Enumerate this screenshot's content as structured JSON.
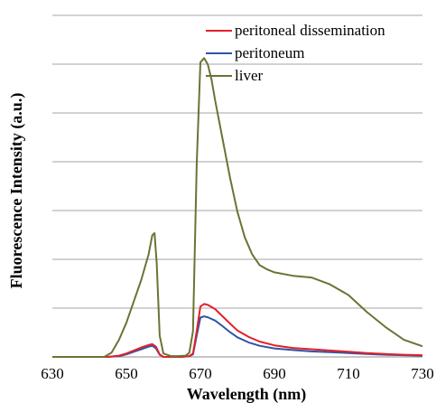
{
  "chart_data": {
    "type": "line",
    "title": "",
    "xlabel": "Wavelength (nm)",
    "ylabel": "Fluorescence Intensity (a.u.)",
    "xlim": [
      630,
      730
    ],
    "x_ticks": [
      "630",
      "650",
      "670",
      "690",
      "710",
      "730"
    ],
    "y_gridlines": 7,
    "grid": true,
    "legend_position": "top-right",
    "series": [
      {
        "name": "peritoneal dissemination",
        "color": "#e3202b",
        "points": [
          [
            630,
            0.0
          ],
          [
            645,
            0.0
          ],
          [
            648,
            0.003
          ],
          [
            650,
            0.008
          ],
          [
            652,
            0.015
          ],
          [
            654,
            0.022
          ],
          [
            656,
            0.028
          ],
          [
            657,
            0.03
          ],
          [
            658,
            0.024
          ],
          [
            659,
            0.006
          ],
          [
            660,
            0.0
          ],
          [
            662,
            0.0
          ],
          [
            665,
            0.0
          ],
          [
            667,
            0.002
          ],
          [
            668,
            0.008
          ],
          [
            669,
            0.06
          ],
          [
            670,
            0.118
          ],
          [
            671,
            0.124
          ],
          [
            672,
            0.122
          ],
          [
            674,
            0.112
          ],
          [
            676,
            0.095
          ],
          [
            678,
            0.078
          ],
          [
            680,
            0.062
          ],
          [
            683,
            0.047
          ],
          [
            686,
            0.036
          ],
          [
            690,
            0.027
          ],
          [
            695,
            0.021
          ],
          [
            700,
            0.018
          ],
          [
            705,
            0.015
          ],
          [
            710,
            0.012
          ],
          [
            715,
            0.009
          ],
          [
            720,
            0.007
          ],
          [
            725,
            0.005
          ],
          [
            730,
            0.004
          ]
        ]
      },
      {
        "name": "peritoneum",
        "color": "#2e55a6",
        "points": [
          [
            630,
            0.0
          ],
          [
            645,
            0.0
          ],
          [
            648,
            0.002
          ],
          [
            650,
            0.006
          ],
          [
            652,
            0.012
          ],
          [
            654,
            0.018
          ],
          [
            656,
            0.024
          ],
          [
            657,
            0.026
          ],
          [
            658,
            0.02
          ],
          [
            659,
            0.005
          ],
          [
            660,
            0.0
          ],
          [
            662,
            0.0
          ],
          [
            665,
            0.0
          ],
          [
            667,
            0.002
          ],
          [
            668,
            0.006
          ],
          [
            669,
            0.05
          ],
          [
            670,
            0.092
          ],
          [
            671,
            0.095
          ],
          [
            672,
            0.093
          ],
          [
            674,
            0.085
          ],
          [
            676,
            0.072
          ],
          [
            678,
            0.058
          ],
          [
            680,
            0.046
          ],
          [
            683,
            0.034
          ],
          [
            686,
            0.026
          ],
          [
            690,
            0.02
          ],
          [
            695,
            0.016
          ],
          [
            700,
            0.013
          ],
          [
            705,
            0.011
          ],
          [
            710,
            0.009
          ],
          [
            715,
            0.007
          ],
          [
            720,
            0.005
          ],
          [
            725,
            0.004
          ],
          [
            730,
            0.003
          ]
        ]
      },
      {
        "name": "liver",
        "color": "#6b7335",
        "points": [
          [
            630,
            0.0
          ],
          [
            644,
            0.0
          ],
          [
            646,
            0.01
          ],
          [
            648,
            0.04
          ],
          [
            650,
            0.08
          ],
          [
            652,
            0.13
          ],
          [
            654,
            0.18
          ],
          [
            656,
            0.24
          ],
          [
            657,
            0.285
          ],
          [
            657.6,
            0.29
          ],
          [
            658.2,
            0.22
          ],
          [
            659,
            0.05
          ],
          [
            660,
            0.008
          ],
          [
            662,
            0.002
          ],
          [
            664,
            0.002
          ],
          [
            666,
            0.003
          ],
          [
            667,
            0.01
          ],
          [
            668,
            0.06
          ],
          [
            669,
            0.45
          ],
          [
            670,
            0.69
          ],
          [
            671,
            0.7
          ],
          [
            672,
            0.685
          ],
          [
            673,
            0.65
          ],
          [
            674,
            0.6
          ],
          [
            676,
            0.51
          ],
          [
            678,
            0.42
          ],
          [
            680,
            0.34
          ],
          [
            682,
            0.28
          ],
          [
            684,
            0.24
          ],
          [
            686,
            0.215
          ],
          [
            688,
            0.205
          ],
          [
            690,
            0.198
          ],
          [
            695,
            0.19
          ],
          [
            700,
            0.186
          ],
          [
            705,
            0.17
          ],
          [
            710,
            0.145
          ],
          [
            715,
            0.105
          ],
          [
            720,
            0.07
          ],
          [
            725,
            0.04
          ],
          [
            730,
            0.025
          ]
        ]
      }
    ]
  }
}
